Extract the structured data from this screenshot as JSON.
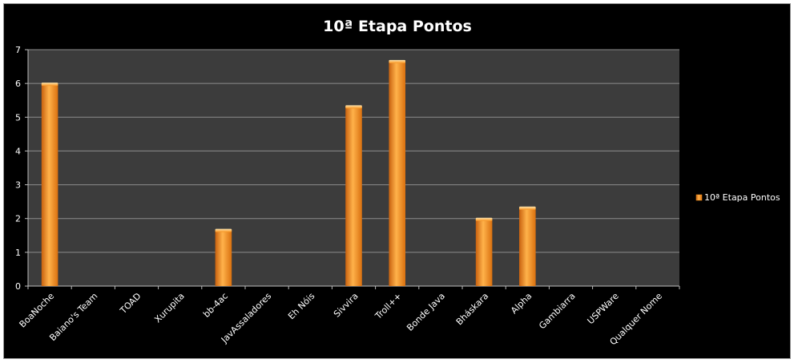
{
  "chart_data": {
    "type": "bar",
    "title": "10ª Etapa Pontos",
    "categories": [
      "BoaNoche",
      "Baiano's Team",
      "TOAD",
      "Xurupita",
      "bb-4ac",
      "JavAssaladores",
      "Eh Nóis",
      "Sivvira",
      "Troll++",
      "Bonde Java",
      "Bháskara",
      "Alpha",
      "Gambiarra",
      "USPWare",
      "Qualquer Nome"
    ],
    "series": [
      {
        "name": "10ª Etapa Pontos",
        "values": [
          6,
          0,
          0,
          0,
          1.67,
          0,
          0,
          5.33,
          6.67,
          0,
          2,
          2.33,
          0,
          0,
          0
        ]
      }
    ],
    "ylim": [
      0,
      7
    ],
    "yticks": [
      0,
      1,
      2,
      3,
      4,
      5,
      6,
      7
    ],
    "grid": true,
    "legend": "right",
    "colors": {
      "background": "#000000",
      "plot_area": "#3c3c3c",
      "gridline": "#8c8c8c",
      "bar": "#f7931e",
      "text": "#ffffff"
    }
  }
}
